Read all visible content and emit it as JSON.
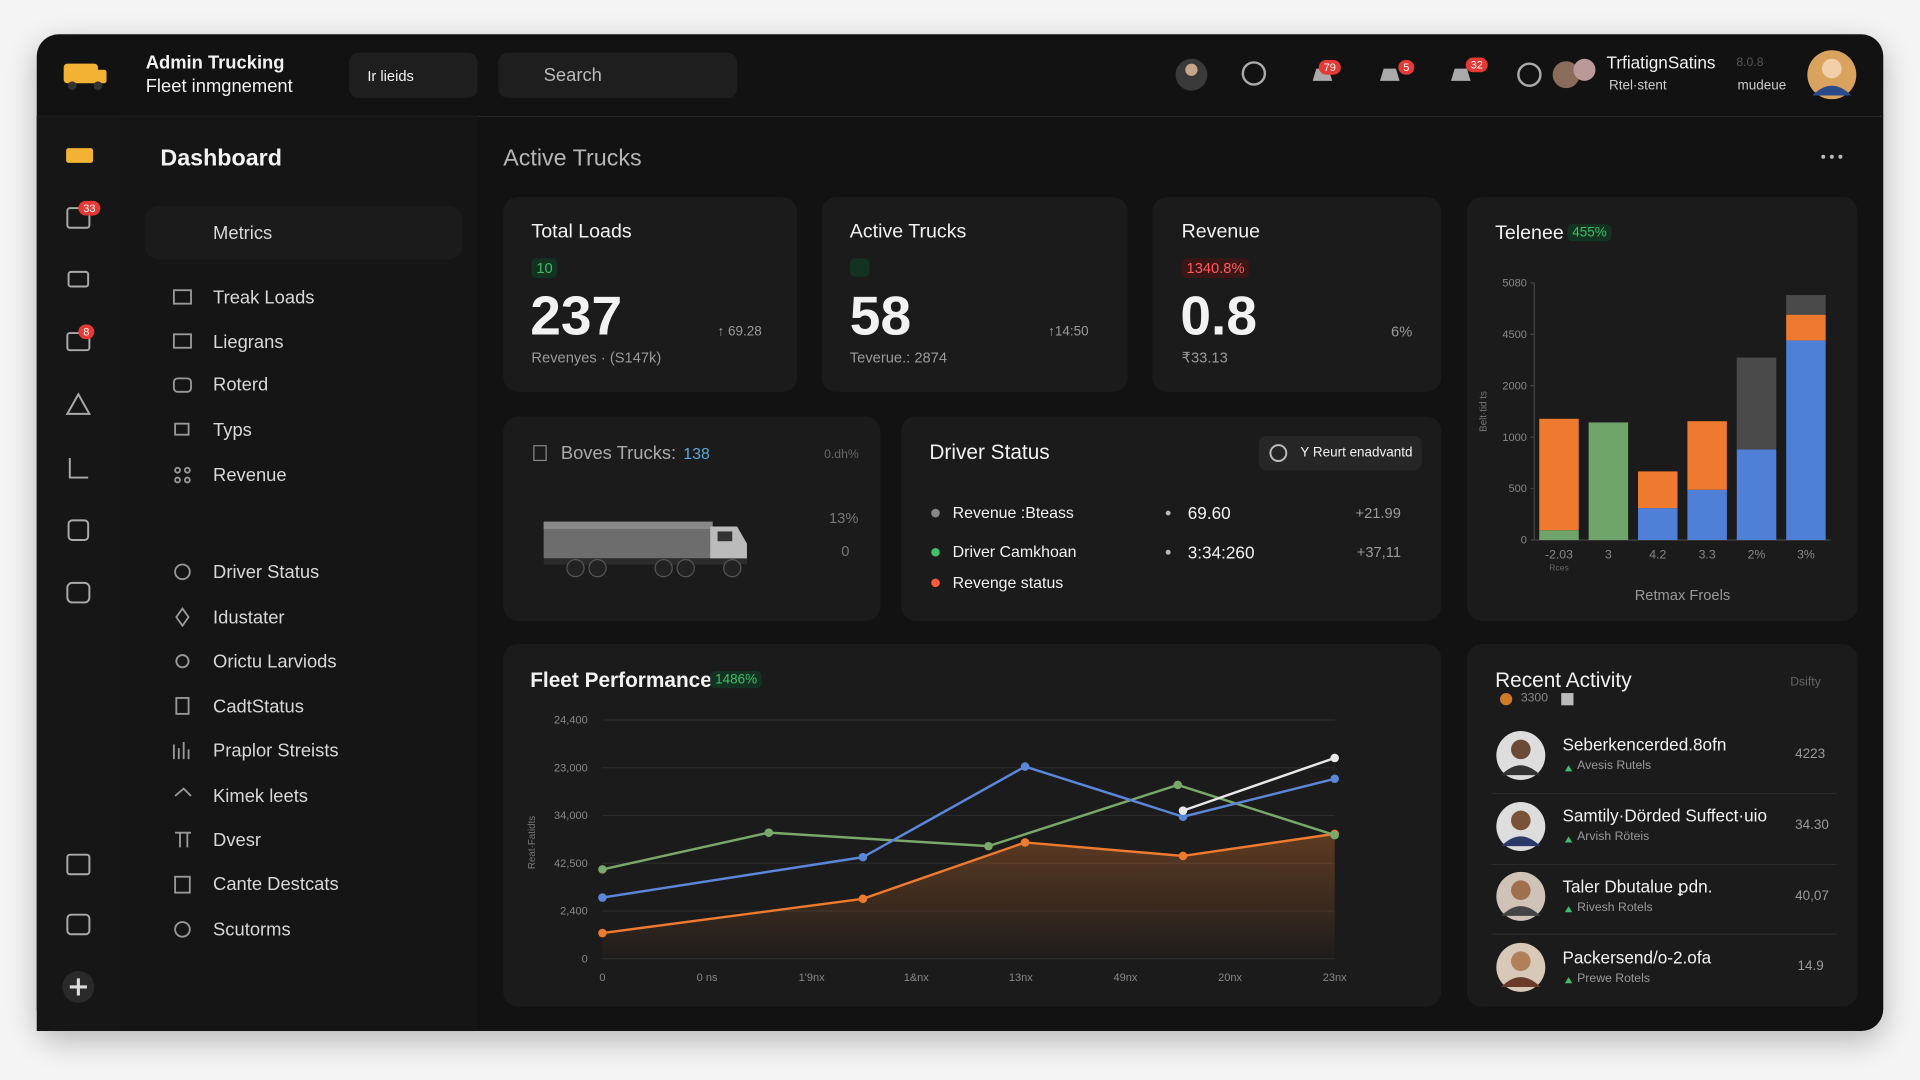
{
  "header": {
    "brand_title": "Admin Trucking",
    "brand_subtitle": "Fleet inmgnement",
    "filter": "Ir lieids",
    "search": "Search",
    "badges": [
      "79",
      "5",
      "32"
    ],
    "user_name": "TrfiatignSatins",
    "user_version": "8.0.8",
    "user_role": "Rtel·stent",
    "user_status": "mudeue"
  },
  "rail": {
    "badges": [
      "33",
      "8"
    ]
  },
  "nav": {
    "title": "Dashboard",
    "group": "Metrics",
    "items": [
      "Treak Loads",
      "Liegrans",
      "Roterd",
      "Typs",
      "Revenue"
    ],
    "items2": [
      "Driver Status",
      "Idustater",
      "Orictu Larviods",
      "CadtStatus",
      "Praplor Streists",
      "Kimek leets",
      "Dvesr",
      "Cante Destcats",
      "Scutorms"
    ]
  },
  "main": {
    "section_title": "Active Trucks"
  },
  "kpis": [
    {
      "title": "Total Loads",
      "badge": "10",
      "value": "237",
      "delta": "↑ 69.28",
      "sub": "Revenyes · (S147k)"
    },
    {
      "title": "Active Trucks",
      "value": "58",
      "delta": "↑14:50",
      "sub": "Teverue.: 2874"
    },
    {
      "title": "Revenue",
      "badge": "1340.8%",
      "value": "0.8",
      "delta": "6%",
      "sub": "₹33.13"
    }
  ],
  "boves": {
    "title": "Boves Trucks:",
    "count": "138",
    "corner": "0.dh%",
    "stat1": "13%",
    "stat2": "0"
  },
  "driver_status": {
    "title": "Driver Status",
    "button": "Y Reurt enadvantd",
    "rows": [
      {
        "label": "Revenue :Bteass",
        "value": "69.60",
        "change": "+21.99"
      },
      {
        "label": "Driver Camkhoan",
        "value": "3:34:260",
        "change": "+37,11"
      },
      {
        "label": "Revenge status"
      }
    ]
  },
  "chart_data": [
    {
      "type": "bar",
      "stacked": true,
      "title": "Telenee",
      "badge": "455%",
      "categories": [
        "-2.03",
        "3",
        "4.2",
        "3.3",
        "2%",
        "3%"
      ],
      "x_note": "Rces",
      "xlabel": "Retmax Froels",
      "ylabel": "Belt·tid ts",
      "ylim": [
        0,
        5080
      ],
      "yticks": [
        0,
        500,
        1000,
        2000,
        4500,
        5080
      ],
      "series": [
        {
          "color": "#6fa56b",
          "values": [
            95,
            1286,
            0,
            0,
            0,
            0
          ]
        },
        {
          "color": "#4f7fd6",
          "values": [
            0,
            0,
            310,
            488,
            881,
            4202
          ]
        },
        {
          "color": "#ee7a2f",
          "values": [
            1262,
            0,
            357,
            822,
            0,
            519
          ]
        },
        {
          "color": "#4a4a4a",
          "values": [
            0,
            0,
            0,
            0,
            2488,
            221
          ]
        }
      ]
    },
    {
      "type": "line",
      "title": "Fleet Performance",
      "badge": "1486%",
      "ylabel": "Reat·Fatidts",
      "grid": true,
      "xlim": [
        0,
        7
      ],
      "xticks": [
        0,
        {
          "value": 1,
          "label": "0 ns"
        },
        {
          "value": 2,
          "label": "1'9nx"
        },
        {
          "value": 3,
          "label": "1&nx"
        },
        {
          "value": 4,
          "label": "13nx"
        },
        {
          "value": 5,
          "label": "49nx"
        },
        {
          "value": 6,
          "label": "20nx"
        },
        {
          "value": 7,
          "label": "23nx"
        }
      ],
      "ylim": [
        0,
        24400
      ],
      "yticks": [
        0,
        {
          "value": 4880,
          "label": "2,400"
        },
        {
          "value": 9760,
          "label": "42,500"
        },
        {
          "value": 14640,
          "label": "34,000"
        },
        {
          "value": 19520,
          "label": "23,000"
        },
        {
          "value": 24400,
          "label": "24,400"
        }
      ],
      "series": [
        {
          "color": "#ee7a2f",
          "area": true,
          "x": [
            0,
            2.49,
            4.04,
            5.55,
            7
          ],
          "values": [
            2628,
            6131,
            11887,
            10511,
            12763
          ]
        },
        {
          "color": "#7aa86a",
          "x": [
            0,
            1.59,
            3.69,
            5.5,
            7
          ],
          "values": [
            9134,
            12888,
            11512,
            17768,
            12638
          ]
        },
        {
          "color": "#5b86d9",
          "x": [
            0,
            2.49,
            4.04,
            5.55,
            7
          ],
          "values": [
            6256,
            10386,
            19645,
            14514,
            18394
          ]
        },
        {
          "color": "#e8e8e8",
          "x": [
            5.55,
            7
          ],
          "values": [
            15140,
            20520
          ]
        }
      ]
    }
  ],
  "recent": {
    "title": "Recent Activity",
    "corner": "Dsifty",
    "count": "3300",
    "items": [
      {
        "name": "Seberkencerded.8ofn",
        "sub": "Avesis Rutels",
        "value": "4223"
      },
      {
        "name": "Samtily·Dörded Suffect·uio",
        "sub": "Arvish Röteis",
        "value": "34.30"
      },
      {
        "name": "Taler Dbutalue ꝑdn.",
        "sub": "Rivesh Rotels",
        "value": "40,07"
      },
      {
        "name": "Packersend/o-2.ofa",
        "sub": "Prewe Rotels",
        "value": "14.9"
      }
    ]
  }
}
